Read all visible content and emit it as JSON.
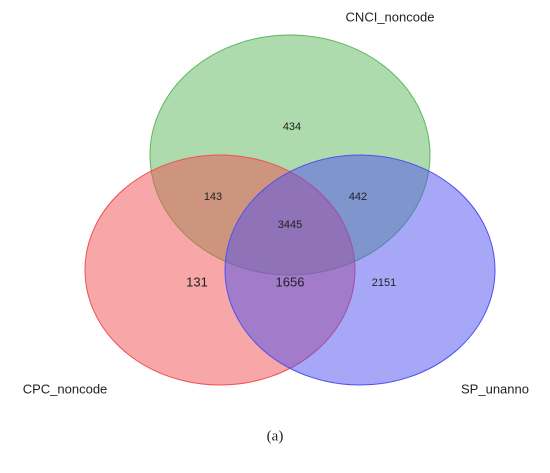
{
  "chart_data": {
    "type": "venn",
    "sets": [
      {
        "name": "CNCI_noncode",
        "color": "#5cb85c"
      },
      {
        "name": "CPC_noncode",
        "color": "#f05050"
      },
      {
        "name": "SP_unanno",
        "color": "#5050f0"
      }
    ],
    "regions": [
      {
        "sets": [
          0
        ],
        "value": 434
      },
      {
        "sets": [
          0,
          1
        ],
        "value": 143
      },
      {
        "sets": [
          0,
          2
        ],
        "value": 442
      },
      {
        "sets": [
          0,
          1,
          2
        ],
        "value": 3445
      },
      {
        "sets": [
          1
        ],
        "value": 131
      },
      {
        "sets": [
          1,
          2
        ],
        "value": 1656
      },
      {
        "sets": [
          2
        ],
        "value": 2151
      }
    ],
    "caption": "(a)"
  }
}
